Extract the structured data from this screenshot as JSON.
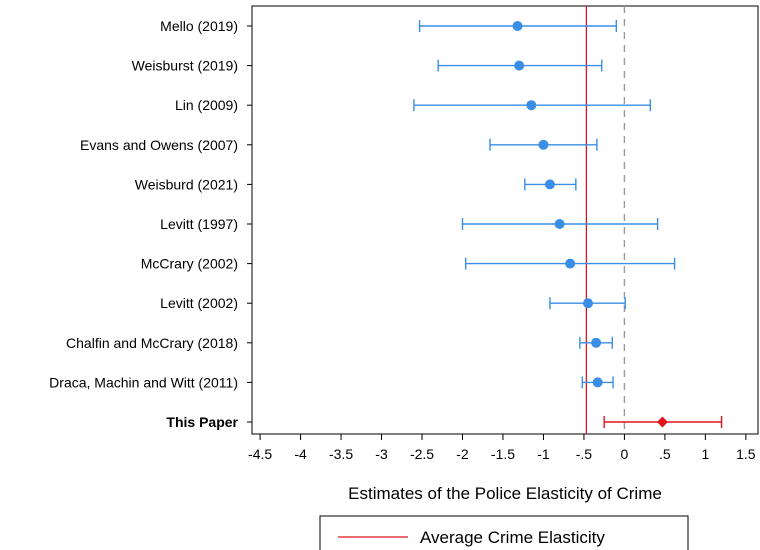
{
  "chart_data": {
    "type": "scatter",
    "xlabel": "Estimates of the Police Elasticity of Crime",
    "ylabel": "",
    "xlim": [
      -4.6,
      1.65
    ],
    "xticks": [
      {
        "value": -4.5,
        "label": "-4.5"
      },
      {
        "value": -4,
        "label": "-4"
      },
      {
        "value": -3.5,
        "label": "-3.5"
      },
      {
        "value": -3,
        "label": "-3"
      },
      {
        "value": -2.5,
        "label": "-2.5"
      },
      {
        "value": -2,
        "label": "-2"
      },
      {
        "value": -1.5,
        "label": "-1.5"
      },
      {
        "value": -1,
        "label": "-1"
      },
      {
        "value": -0.5,
        "label": "-.5"
      },
      {
        "value": 0,
        "label": "0"
      },
      {
        "value": 0.5,
        "label": ".5"
      },
      {
        "value": 1,
        "label": "1"
      },
      {
        "value": 1.5,
        "label": "1.5"
      }
    ],
    "grid": false,
    "studies": [
      {
        "label": "Mello (2019)",
        "estimate": -1.32,
        "lo": -2.53,
        "hi": -0.1,
        "highlight": false
      },
      {
        "label": "Weisburst (2019)",
        "estimate": -1.3,
        "lo": -2.3,
        "hi": -0.28,
        "highlight": false
      },
      {
        "label": "Lin (2009)",
        "estimate": -1.15,
        "lo": -2.6,
        "hi": 0.32,
        "highlight": false
      },
      {
        "label": "Evans and Owens (2007)",
        "estimate": -1.0,
        "lo": -1.66,
        "hi": -0.34,
        "highlight": false
      },
      {
        "label": "Weisburd (2021)",
        "estimate": -0.92,
        "lo": -1.23,
        "hi": -0.6,
        "highlight": false
      },
      {
        "label": "Levitt (1997)",
        "estimate": -0.8,
        "lo": -2.0,
        "hi": 0.41,
        "highlight": false
      },
      {
        "label": "McCrary (2002)",
        "estimate": -0.67,
        "lo": -1.96,
        "hi": 0.62,
        "highlight": false
      },
      {
        "label": "Levitt (2002)",
        "estimate": -0.45,
        "lo": -0.92,
        "hi": 0.01,
        "highlight": false
      },
      {
        "label": "Chalfin and McCrary (2018)",
        "estimate": -0.35,
        "lo": -0.55,
        "hi": -0.15,
        "highlight": false
      },
      {
        "label": "Draca, Machin and Witt (2011)",
        "estimate": -0.33,
        "lo": -0.52,
        "hi": -0.14,
        "highlight": false
      },
      {
        "label": "This Paper",
        "estimate": 0.47,
        "lo": -0.25,
        "hi": 1.2,
        "highlight": true
      }
    ],
    "reference_lines": {
      "average_elasticity": -0.47,
      "zero": 0
    },
    "legend": {
      "position": "bottom",
      "entries": [
        "Average Crime Elasticity"
      ]
    },
    "colors": {
      "estimate": "#3a8ee6",
      "highlight": "#e0141e",
      "average_line": "#e0141e",
      "zero_line": "#9a9a9a"
    }
  }
}
